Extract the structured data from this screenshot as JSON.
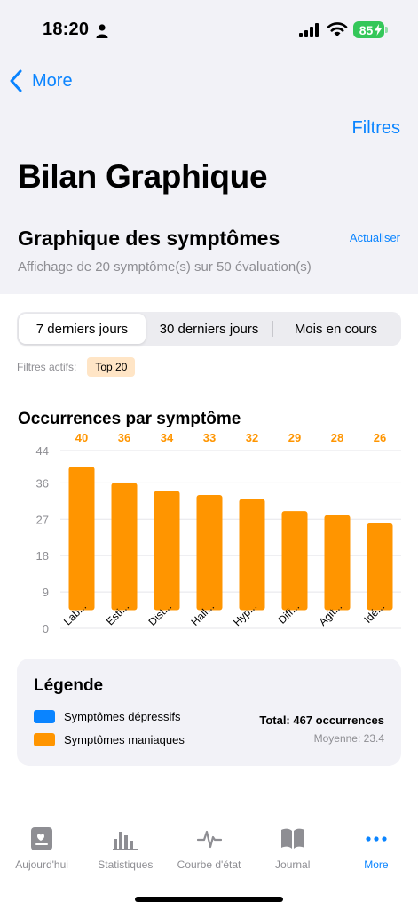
{
  "status_bar": {
    "time": "18:20",
    "battery": "85"
  },
  "nav": {
    "back_label": "More",
    "filters_label": "Filtres"
  },
  "page_title": "Bilan Graphique",
  "section": {
    "title": "Graphique des symptômes",
    "refresh_label": "Actualiser",
    "subtitle": "Affichage de 20 symptôme(s) sur 50 évaluation(s)"
  },
  "segments": [
    {
      "label": "7 derniers jours",
      "selected": true
    },
    {
      "label": "30 derniers jours",
      "selected": false
    },
    {
      "label": "Mois en cours",
      "selected": false
    }
  ],
  "active_filters": {
    "label": "Filtres actifs:",
    "chip": "Top 20"
  },
  "chart_title": "Occurrences par symptôme",
  "chart_data": {
    "type": "bar",
    "categories": [
      "Lab...",
      "Esti...",
      "Dist...",
      "Hall...",
      "Hyp...",
      "Diff...",
      "Agit...",
      "Idé..."
    ],
    "values": [
      40,
      36,
      34,
      33,
      32,
      29,
      28,
      26
    ],
    "yticks": [
      "44",
      "36",
      "27",
      "18",
      "9",
      "0"
    ],
    "ylim": [
      0,
      44
    ],
    "bar_color": "#ff9500",
    "value_label_color": "#ff9500",
    "grid": true
  },
  "legend": {
    "title": "Légende",
    "items": [
      {
        "label": "Symptômes dépressifs",
        "color": "#0a84ff"
      },
      {
        "label": "Symptômes maniaques",
        "color": "#ff9500"
      }
    ],
    "total": "Total: 467 occurrences",
    "average": "Moyenne: 23.4"
  },
  "tabs": [
    {
      "label": "Aujourd'hui",
      "icon": "today-card-icon",
      "active": false
    },
    {
      "label": "Statistiques",
      "icon": "bar-chart-icon",
      "active": false
    },
    {
      "label": "Courbe d'état",
      "icon": "waveform-icon",
      "active": false
    },
    {
      "label": "Journal",
      "icon": "book-icon",
      "active": false
    },
    {
      "label": "More",
      "icon": "more-dots-icon",
      "active": true
    }
  ],
  "colors": {
    "accent": "#0a84ff",
    "orange": "#ff9500",
    "battery": "#34c759"
  }
}
